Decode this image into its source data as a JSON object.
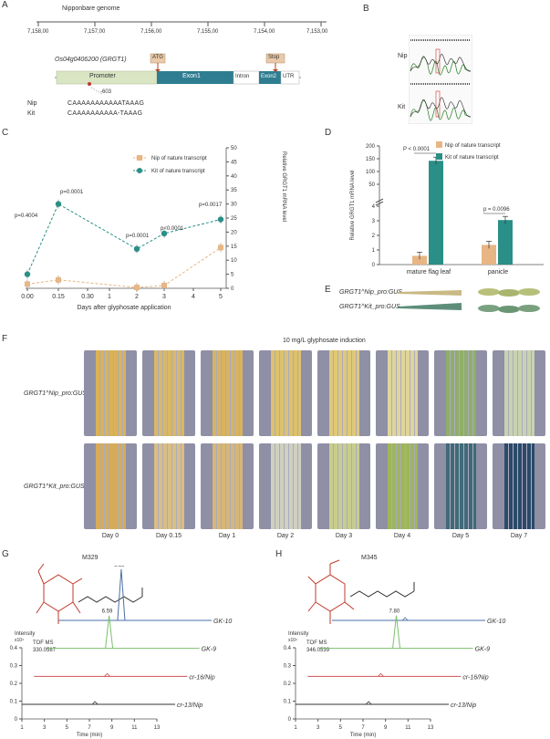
{
  "panel_labels": {
    "a": "A",
    "b": "B",
    "c": "C",
    "d": "D",
    "e": "E",
    "f": "F",
    "g": "G",
    "h": "H"
  },
  "panel_a": {
    "genome_label": "Nipponbare genome",
    "ticks": [
      "7,158,00",
      "7,157,00",
      "7,156,00",
      "7,155,00",
      "7,154,00",
      "7,153,00"
    ],
    "gene_name": "Os04g0406200 (GRGT1)",
    "atg": "ATG",
    "stop": "Stop",
    "segments": {
      "promoter": "Promoter",
      "exon1": "Exon1",
      "intron": "Intron",
      "exon2": "Exon2",
      "utr": "UTR"
    },
    "position": "-603",
    "nip_label": "Nip",
    "nip_seq": "CAAAAAAAAAAATAAAG",
    "kit_label": "Kit",
    "kit_seq": "CAAAAAAAAAA-TAAAG"
  },
  "panel_b": {
    "nip": "Nip",
    "kit": "Kit"
  },
  "chart_data": [
    {
      "type": "line",
      "panel": "C",
      "xlabel": "Days after glyphosate application",
      "ylabel": "Relative GRGT1 mRNA level",
      "x_ticks": [
        "0.00",
        "0.15",
        "0.30",
        "1",
        "2",
        "3",
        "4",
        "5"
      ],
      "ylim": [
        0,
        50
      ],
      "y_ticks": [
        0,
        5,
        10,
        15,
        20,
        25,
        30,
        35,
        40,
        45,
        50
      ],
      "series": [
        {
          "name": "Nip of nature transcript",
          "color": "#e8b584",
          "x": [
            "0.00",
            "0.15",
            "2",
            "3",
            "5"
          ],
          "values": [
            1.5,
            3.0,
            0.3,
            1.0,
            14.5
          ]
        },
        {
          "name": "Kit of nature transcript",
          "color": "#2a8f86",
          "x": [
            "0.00",
            "0.15",
            "2",
            "3",
            "5"
          ],
          "values": [
            5.0,
            30.0,
            14.0,
            19.5,
            24.5
          ]
        }
      ],
      "annotations": [
        "p=0.4004",
        "p=0.0001",
        "p=0.0001",
        "p<0.0001",
        "p=0.0017"
      ]
    },
    {
      "type": "bar",
      "panel": "D",
      "categories": [
        "mature flag leaf",
        "panicle"
      ],
      "ylabel": "Relative GRGT1 mRNA level",
      "y_ticks_lower": [
        0,
        1,
        2,
        3,
        4
      ],
      "y_ticks_upper": [
        50,
        100,
        150,
        200
      ],
      "series": [
        {
          "name": "Nip of nature transcript",
          "color": "#e8b584",
          "values": [
            0.6,
            1.35
          ]
        },
        {
          "name": "Kit of nature transcript",
          "color": "#2a8f86",
          "values": [
            142,
            3.05
          ]
        }
      ],
      "annotations": [
        "P < 0.0001",
        "p = 0.0096"
      ]
    },
    {
      "type": "line",
      "panel": "G",
      "compound": "M329",
      "xlabel": "Time (min)",
      "ylabel": "Intensity",
      "yunit": "x10⁴",
      "x_ticks": [
        1,
        3,
        5,
        7,
        9,
        11,
        13
      ],
      "y_ticks": [
        0,
        0.1,
        0.2,
        0.3,
        0.4
      ],
      "tof": "TOF MS",
      "mz": "330.0587",
      "series": [
        {
          "name": "GK-10",
          "color": "#4a6fa5",
          "peak_time": 6.59
        },
        {
          "name": "GK-9",
          "color": "#7bc06b",
          "peak_time": 6.59
        },
        {
          "name": "cr-16/Nip",
          "color": "#d05050",
          "peak_time": null
        },
        {
          "name": "cr-13/Nip",
          "color": "#333333",
          "peak_time": null
        }
      ],
      "peak_labels": [
        "6.59",
        "6.59"
      ]
    },
    {
      "type": "line",
      "panel": "H",
      "compound": "M345",
      "xlabel": "Time (min)",
      "ylabel": "Intensity",
      "yunit": "x10⁴",
      "x_ticks": [
        1,
        3,
        5,
        7,
        9,
        11,
        13
      ],
      "y_ticks": [
        0,
        0.1,
        0.2,
        0.3,
        0.4
      ],
      "tof": "TOF MS",
      "mz": "346.0539",
      "series": [
        {
          "name": "GK-10",
          "color": "#4a6fa5",
          "peak_time": null
        },
        {
          "name": "GK-9",
          "color": "#7bc06b",
          "peak_time": 7.8
        },
        {
          "name": "cr-16/Nip",
          "color": "#d05050",
          "peak_time": null
        },
        {
          "name": "cr-13/Nip",
          "color": "#333333",
          "peak_time": null
        }
      ],
      "peak_labels": [
        "7.80"
      ]
    }
  ],
  "panel_e": {
    "row1": "GRGT1^Nip_pro:GUS",
    "row2": "GRGT1^Kit_pro:GUS"
  },
  "panel_f": {
    "title": "10 mg/L glyphosate induction",
    "row1_label": "GRGT1^Nip_pro:GUS",
    "row2_label": "GRGT1^Kit_pro:GUS",
    "days": [
      "Day 0",
      "Day 0.15",
      "Day 1",
      "Day 2",
      "Day 3",
      "Day 4",
      "Day 5",
      "Day 7"
    ],
    "row1_colors": [
      "#d9b25a",
      "#d8b869",
      "#d8b35f",
      "#ddc16c",
      "#e0c878",
      "#dfd59a",
      "#8fae6a",
      "#c9d2b0"
    ],
    "row2_colors": [
      "#d6ac5b",
      "#d9be86",
      "#d7b677",
      "#cfd0c0",
      "#c8cd8e",
      "#9eb65b",
      "#3f6a79",
      "#2b4a6a"
    ]
  }
}
